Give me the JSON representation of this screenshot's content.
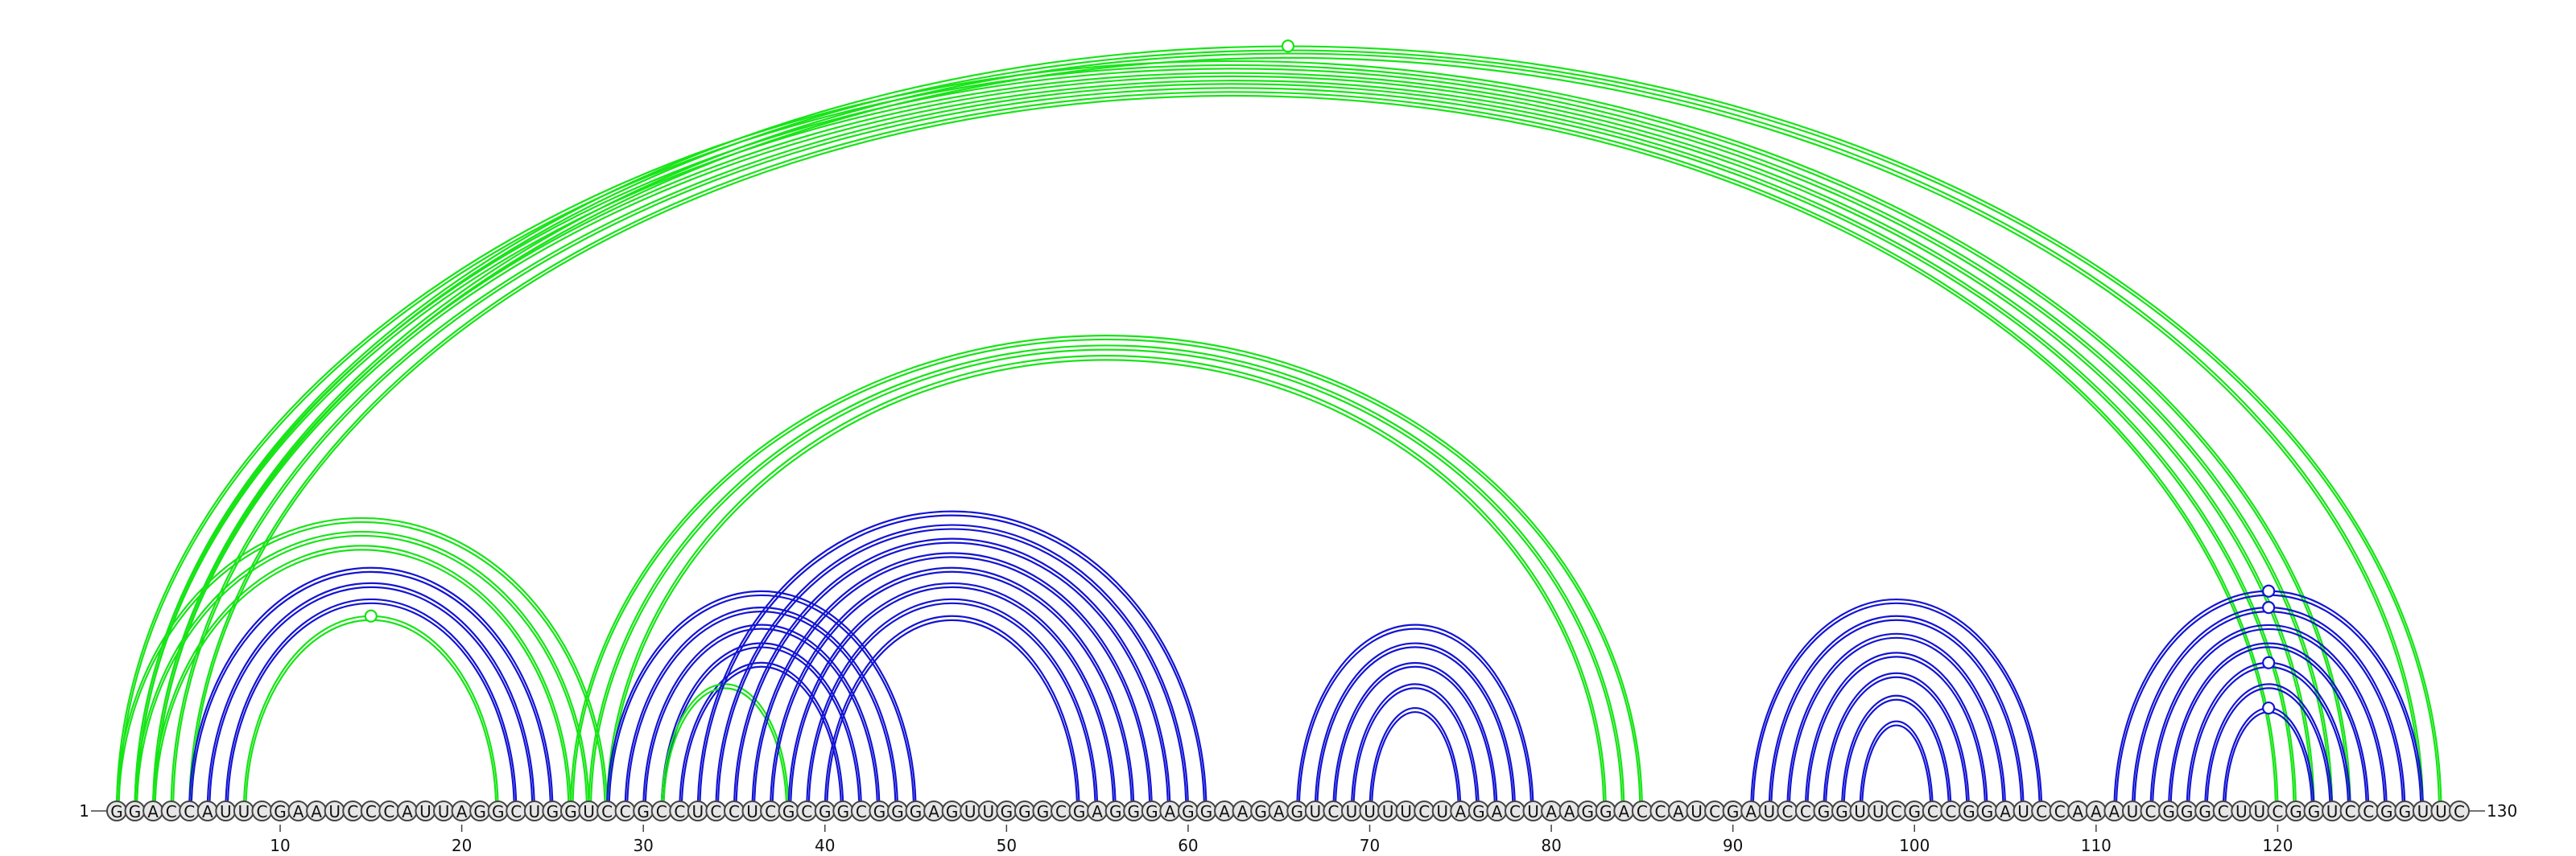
{
  "sequence": "GGACCAUUCGAAUCCCAUUAGGCUGGUCCGCCUCCUCGCGGCGGGAGUUGGGCGAGGGAGGAAGAGUCUUUUCUAGACUAAGGACCAUCGAUCCGGUUCGCCGGAUCCAAAUCGGGCUUCGGUCCGGUUC",
  "start_label": "1",
  "end_label": "130",
  "tick_labels": [
    "10",
    "20",
    "30",
    "40",
    "50",
    "60",
    "70",
    "80",
    "90",
    "100",
    "110",
    "120"
  ],
  "colors": {
    "blue": "#1414d2",
    "green": "#17e417"
  },
  "arcs": [
    {
      "i": 1,
      "j": 124,
      "color": "green"
    },
    {
      "i": 2,
      "j": 123,
      "color": "green"
    },
    {
      "i": 3,
      "j": 122,
      "color": "green"
    },
    {
      "i": 4,
      "j": 121,
      "color": "green"
    },
    {
      "i": 5,
      "j": 120,
      "color": "green"
    },
    {
      "i": 2,
      "j": 129,
      "color": "green"
    },
    {
      "i": 3,
      "j": 128,
      "color": "green"
    },
    {
      "i": 1,
      "j": 28,
      "color": "green"
    },
    {
      "i": 2,
      "j": 27,
      "color": "green"
    },
    {
      "i": 3,
      "j": 26,
      "color": "green"
    },
    {
      "i": 5,
      "j": 25,
      "color": "blue"
    },
    {
      "i": 6,
      "j": 24,
      "color": "blue"
    },
    {
      "i": 7,
      "j": 23,
      "color": "blue"
    },
    {
      "i": 8,
      "j": 22,
      "color": "green"
    },
    {
      "i": 26,
      "j": 85,
      "color": "green"
    },
    {
      "i": 27,
      "j": 84,
      "color": "green"
    },
    {
      "i": 28,
      "j": 83,
      "color": "green"
    },
    {
      "i": 28,
      "j": 45,
      "color": "blue"
    },
    {
      "i": 29,
      "j": 44,
      "color": "blue"
    },
    {
      "i": 30,
      "j": 43,
      "color": "blue"
    },
    {
      "i": 31,
      "j": 42,
      "color": "blue"
    },
    {
      "i": 32,
      "j": 41,
      "color": "blue"
    },
    {
      "i": 31,
      "j": 38,
      "color": "green"
    },
    {
      "i": 33,
      "j": 61,
      "color": "blue"
    },
    {
      "i": 34,
      "j": 60,
      "color": "blue"
    },
    {
      "i": 35,
      "j": 59,
      "color": "blue"
    },
    {
      "i": 36,
      "j": 58,
      "color": "blue"
    },
    {
      "i": 37,
      "j": 57,
      "color": "blue"
    },
    {
      "i": 38,
      "j": 56,
      "color": "blue"
    },
    {
      "i": 39,
      "j": 55,
      "color": "blue"
    },
    {
      "i": 40,
      "j": 54,
      "color": "blue"
    },
    {
      "i": 66,
      "j": 79,
      "color": "blue"
    },
    {
      "i": 67,
      "j": 78,
      "color": "blue"
    },
    {
      "i": 68,
      "j": 77,
      "color": "blue"
    },
    {
      "i": 69,
      "j": 76,
      "color": "blue"
    },
    {
      "i": 70,
      "j": 75,
      "color": "blue"
    },
    {
      "i": 91,
      "j": 107,
      "color": "blue"
    },
    {
      "i": 92,
      "j": 106,
      "color": "blue"
    },
    {
      "i": 93,
      "j": 105,
      "color": "blue"
    },
    {
      "i": 94,
      "j": 104,
      "color": "blue"
    },
    {
      "i": 95,
      "j": 103,
      "color": "blue"
    },
    {
      "i": 96,
      "j": 102,
      "color": "blue"
    },
    {
      "i": 97,
      "j": 101,
      "color": "blue"
    },
    {
      "i": 111,
      "j": 128,
      "color": "blue"
    },
    {
      "i": 112,
      "j": 127,
      "color": "blue"
    },
    {
      "i": 113,
      "j": 126,
      "color": "blue"
    },
    {
      "i": 114,
      "j": 125,
      "color": "blue"
    },
    {
      "i": 115,
      "j": 124,
      "color": "blue"
    },
    {
      "i": 116,
      "j": 123,
      "color": "blue"
    },
    {
      "i": 117,
      "j": 122,
      "color": "blue"
    }
  ],
  "markers": [
    {
      "arc": 5,
      "color": "green"
    },
    {
      "arc": 13,
      "color": "green"
    },
    {
      "arc": 43,
      "color": "blue"
    },
    {
      "arc": 44,
      "color": "blue"
    },
    {
      "arc": 47,
      "color": "blue"
    },
    {
      "arc": 49,
      "color": "blue"
    }
  ]
}
